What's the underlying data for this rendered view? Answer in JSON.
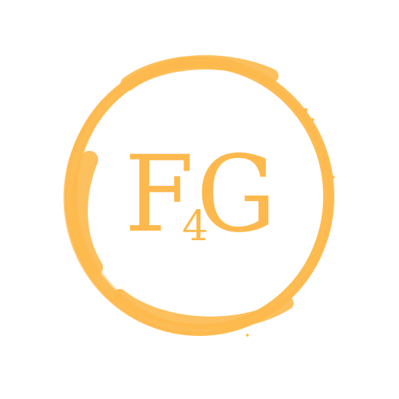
{
  "logo": {
    "letter_1": "F",
    "digit": "4",
    "letter_2": "G",
    "color": "#FDB94D"
  }
}
